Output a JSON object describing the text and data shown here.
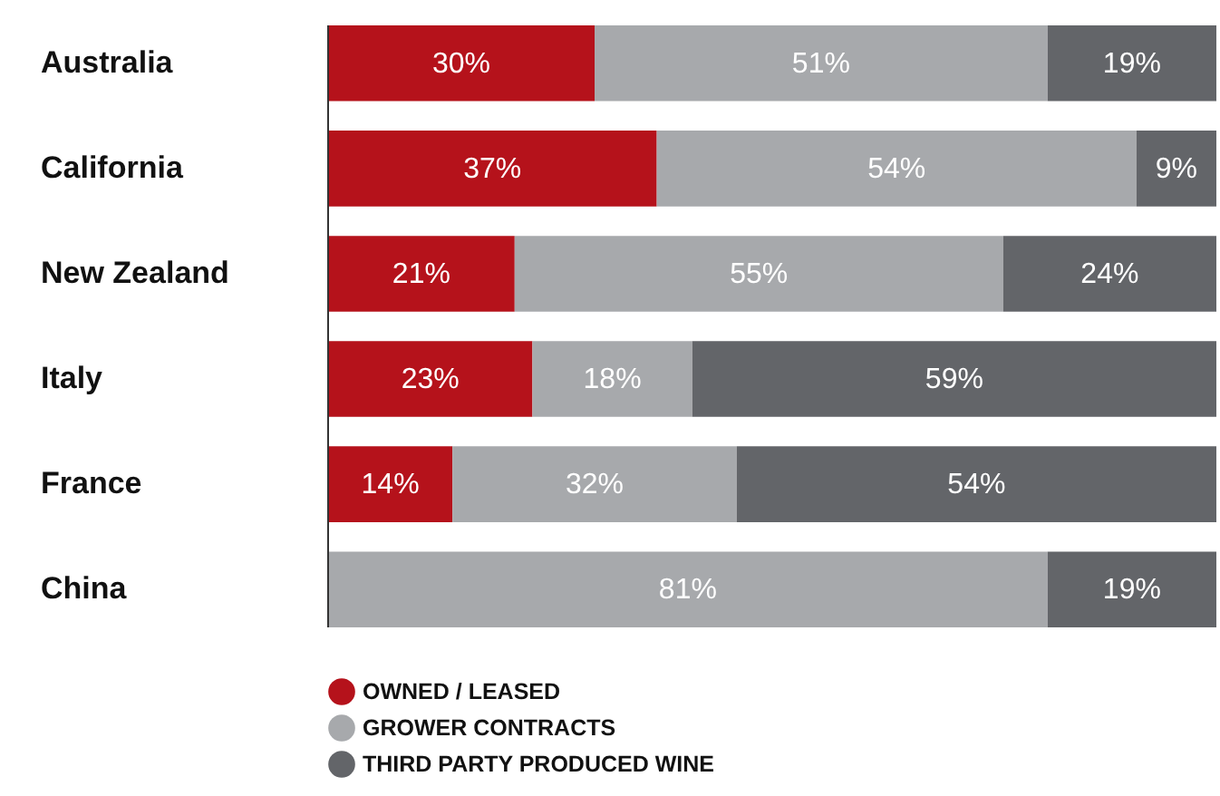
{
  "chart_data": {
    "type": "bar",
    "orientation": "horizontal",
    "stacked": true,
    "legend": "bottom",
    "categories": [
      "Australia",
      "California",
      "New Zealand",
      "Italy",
      "France",
      "China"
    ],
    "series": [
      {
        "name": "OWNED / LEASED",
        "color": "#b5121b",
        "values": [
          30,
          37,
          21,
          23,
          14,
          null
        ],
        "value_labels": [
          "30%",
          "37%",
          "21%",
          "23%",
          "14%",
          null
        ]
      },
      {
        "name": "GROWER CONTRACTS",
        "color": "#a7a9ac",
        "values": [
          51,
          54,
          55,
          18,
          32,
          81
        ],
        "value_labels": [
          "51%",
          "54%",
          "55%",
          "18%",
          "32%",
          "81%"
        ]
      },
      {
        "name": "THIRD PARTY PRODUCED WINE",
        "color": "#636569",
        "values": [
          19,
          9,
          24,
          59,
          54,
          19
        ],
        "value_labels": [
          "19%",
          "9%",
          "24%",
          "59%",
          "54%",
          "19%"
        ]
      }
    ]
  }
}
